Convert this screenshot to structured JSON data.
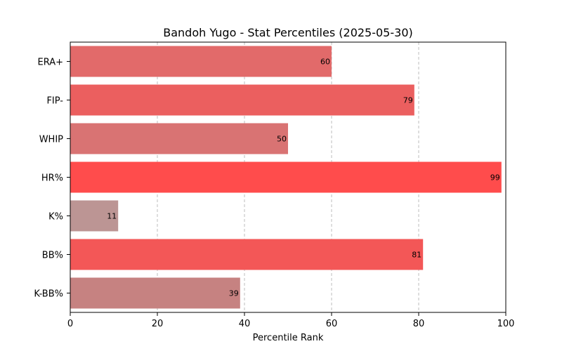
{
  "chart_data": {
    "type": "bar",
    "orientation": "horizontal",
    "title": "Bandoh Yugo - Stat Percentiles (2025-05-30)",
    "xlabel": "Percentile Rank",
    "ylabel": "",
    "xlim": [
      0,
      100
    ],
    "xticks": [
      0,
      20,
      40,
      60,
      80,
      100
    ],
    "grid": "x-dashed",
    "categories": [
      "ERA+",
      "FIP-",
      "WHIP",
      "HR%",
      "K%",
      "BB%",
      "K-BB%"
    ],
    "values": [
      60,
      79,
      50,
      99,
      11,
      81,
      39
    ],
    "colors": [
      "#e26a6a",
      "#eb5f5f",
      "#d97373",
      "#ff4c4c",
      "#bc9594",
      "#f35757",
      "#c68281"
    ]
  }
}
